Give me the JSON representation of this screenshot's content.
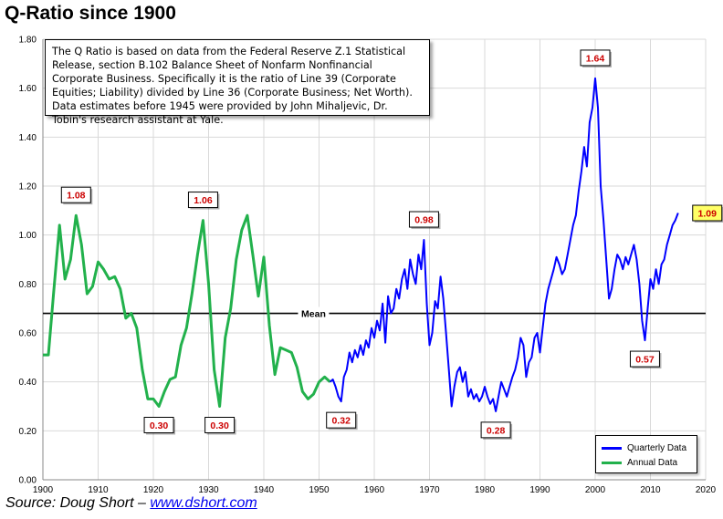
{
  "title": "Q-Ratio since 1900",
  "note": "The Q Ratio is based on data from the Federal Reserve Z.1 Statistical Release, section B.102 Balance Sheet of Nonfarm Nonfinancial Corporate Business. Specifically it is the ratio of Line 39 (Corporate Equities; Liability) divided by Line 36 (Corporate Business; Net Worth). Data estimates before 1945 were provided by John Mihaljevic, Dr. Tobin's research assistant at Yale.",
  "source": {
    "prefix": "Source: Doug Short – ",
    "link_text": "www.dshort.com"
  },
  "colors": {
    "annual": "#22b14c",
    "quarterly": "#0000ff",
    "mean_line": "#000000",
    "grid": "#d9d9d9",
    "label_text": "#cc0000",
    "highlight_bg": "#ffff66"
  },
  "chart_data": {
    "type": "line",
    "title": "Q-Ratio since 1900",
    "xlabel": "",
    "ylabel": "",
    "xlim": [
      1900,
      2020
    ],
    "ylim": [
      0,
      1.8
    ],
    "x_ticks": [
      1900,
      1910,
      1920,
      1930,
      1940,
      1950,
      1960,
      1970,
      1980,
      1990,
      2000,
      2010,
      2020
    ],
    "y_ticks": [
      "0.00",
      "0.20",
      "0.40",
      "0.60",
      "0.80",
      "1.00",
      "1.20",
      "1.40",
      "1.60",
      "1.80"
    ],
    "grid": true,
    "legend_position": "bottom-right",
    "mean": {
      "label": "Mean",
      "value": 0.68
    },
    "series": [
      {
        "name": "Quarterly Data",
        "points": [
          [
            1952,
            0.4
          ],
          [
            1952.5,
            0.41
          ],
          [
            1953,
            0.38
          ],
          [
            1953.5,
            0.34
          ],
          [
            1954,
            0.32
          ],
          [
            1954.5,
            0.42
          ],
          [
            1955,
            0.45
          ],
          [
            1955.5,
            0.52
          ],
          [
            1956,
            0.48
          ],
          [
            1956.5,
            0.53
          ],
          [
            1957,
            0.5
          ],
          [
            1957.5,
            0.55
          ],
          [
            1958,
            0.51
          ],
          [
            1958.5,
            0.57
          ],
          [
            1959,
            0.54
          ],
          [
            1959.5,
            0.62
          ],
          [
            1960,
            0.58
          ],
          [
            1960.5,
            0.65
          ],
          [
            1961,
            0.61
          ],
          [
            1961.5,
            0.72
          ],
          [
            1962,
            0.56
          ],
          [
            1962.5,
            0.75
          ],
          [
            1963,
            0.68
          ],
          [
            1963.5,
            0.7
          ],
          [
            1964,
            0.78
          ],
          [
            1964.5,
            0.74
          ],
          [
            1965,
            0.82
          ],
          [
            1965.5,
            0.86
          ],
          [
            1966,
            0.78
          ],
          [
            1966.5,
            0.9
          ],
          [
            1967,
            0.84
          ],
          [
            1967.5,
            0.8
          ],
          [
            1968,
            0.92
          ],
          [
            1968.5,
            0.86
          ],
          [
            1969,
            0.98
          ],
          [
            1969.5,
            0.72
          ],
          [
            1970,
            0.55
          ],
          [
            1970.5,
            0.6
          ],
          [
            1971,
            0.73
          ],
          [
            1971.5,
            0.7
          ],
          [
            1972,
            0.83
          ],
          [
            1972.5,
            0.74
          ],
          [
            1973,
            0.6
          ],
          [
            1973.5,
            0.45
          ],
          [
            1974,
            0.3
          ],
          [
            1974.5,
            0.38
          ],
          [
            1975,
            0.44
          ],
          [
            1975.5,
            0.46
          ],
          [
            1976,
            0.4
          ],
          [
            1976.5,
            0.44
          ],
          [
            1977,
            0.34
          ],
          [
            1977.5,
            0.37
          ],
          [
            1978,
            0.33
          ],
          [
            1978.5,
            0.35
          ],
          [
            1979,
            0.32
          ],
          [
            1979.5,
            0.34
          ],
          [
            1980,
            0.38
          ],
          [
            1980.5,
            0.34
          ],
          [
            1981,
            0.31
          ],
          [
            1981.5,
            0.33
          ],
          [
            1982,
            0.28
          ],
          [
            1982.5,
            0.34
          ],
          [
            1983,
            0.4
          ],
          [
            1983.5,
            0.37
          ],
          [
            1984,
            0.34
          ],
          [
            1984.5,
            0.38
          ],
          [
            1985,
            0.42
          ],
          [
            1985.5,
            0.45
          ],
          [
            1986,
            0.5
          ],
          [
            1986.5,
            0.58
          ],
          [
            1987,
            0.55
          ],
          [
            1987.5,
            0.42
          ],
          [
            1988,
            0.48
          ],
          [
            1988.5,
            0.5
          ],
          [
            1989,
            0.58
          ],
          [
            1989.5,
            0.6
          ],
          [
            1990,
            0.52
          ],
          [
            1990.5,
            0.62
          ],
          [
            1991,
            0.72
          ],
          [
            1991.5,
            0.78
          ],
          [
            1992,
            0.82
          ],
          [
            1992.5,
            0.86
          ],
          [
            1993,
            0.91
          ],
          [
            1993.5,
            0.88
          ],
          [
            1994,
            0.84
          ],
          [
            1994.5,
            0.86
          ],
          [
            1995,
            0.92
          ],
          [
            1995.5,
            0.98
          ],
          [
            1996,
            1.04
          ],
          [
            1996.5,
            1.08
          ],
          [
            1997,
            1.18
          ],
          [
            1997.5,
            1.26
          ],
          [
            1998,
            1.36
          ],
          [
            1998.5,
            1.28
          ],
          [
            1999,
            1.46
          ],
          [
            1999.5,
            1.52
          ],
          [
            2000,
            1.64
          ],
          [
            2000.5,
            1.52
          ],
          [
            2001,
            1.2
          ],
          [
            2001.5,
            1.06
          ],
          [
            2002,
            0.9
          ],
          [
            2002.5,
            0.74
          ],
          [
            2003,
            0.78
          ],
          [
            2003.5,
            0.86
          ],
          [
            2004,
            0.92
          ],
          [
            2004.5,
            0.9
          ],
          [
            2005,
            0.86
          ],
          [
            2005.5,
            0.91
          ],
          [
            2006,
            0.88
          ],
          [
            2006.5,
            0.92
          ],
          [
            2007,
            0.96
          ],
          [
            2007.5,
            0.9
          ],
          [
            2008,
            0.8
          ],
          [
            2008.5,
            0.65
          ],
          [
            2009,
            0.57
          ],
          [
            2009.5,
            0.7
          ],
          [
            2010,
            0.82
          ],
          [
            2010.5,
            0.78
          ],
          [
            2011,
            0.86
          ],
          [
            2011.5,
            0.8
          ],
          [
            2012,
            0.88
          ],
          [
            2012.5,
            0.9
          ],
          [
            2013,
            0.96
          ],
          [
            2013.5,
            1.0
          ],
          [
            2014,
            1.04
          ],
          [
            2014.5,
            1.06
          ],
          [
            2015,
            1.09
          ]
        ]
      },
      {
        "name": "Annual Data",
        "points": [
          [
            1900,
            0.51
          ],
          [
            1901,
            0.51
          ],
          [
            1902,
            0.78
          ],
          [
            1903,
            1.04
          ],
          [
            1904,
            0.82
          ],
          [
            1905,
            0.9
          ],
          [
            1906,
            1.08
          ],
          [
            1907,
            0.96
          ],
          [
            1908,
            0.76
          ],
          [
            1909,
            0.79
          ],
          [
            1910,
            0.89
          ],
          [
            1911,
            0.86
          ],
          [
            1912,
            0.82
          ],
          [
            1913,
            0.83
          ],
          [
            1914,
            0.78
          ],
          [
            1915,
            0.66
          ],
          [
            1916,
            0.68
          ],
          [
            1917,
            0.62
          ],
          [
            1918,
            0.45
          ],
          [
            1919,
            0.33
          ],
          [
            1920,
            0.33
          ],
          [
            1921,
            0.3
          ],
          [
            1922,
            0.36
          ],
          [
            1923,
            0.41
          ],
          [
            1924,
            0.42
          ],
          [
            1925,
            0.55
          ],
          [
            1926,
            0.62
          ],
          [
            1927,
            0.76
          ],
          [
            1928,
            0.92
          ],
          [
            1929,
            1.06
          ],
          [
            1930,
            0.8
          ],
          [
            1931,
            0.45
          ],
          [
            1932,
            0.3
          ],
          [
            1933,
            0.58
          ],
          [
            1934,
            0.7
          ],
          [
            1935,
            0.9
          ],
          [
            1936,
            1.02
          ],
          [
            1937,
            1.08
          ],
          [
            1938,
            0.92
          ],
          [
            1939,
            0.75
          ],
          [
            1940,
            0.91
          ],
          [
            1941,
            0.63
          ],
          [
            1942,
            0.43
          ],
          [
            1943,
            0.54
          ],
          [
            1944,
            0.53
          ],
          [
            1945,
            0.52
          ],
          [
            1946,
            0.46
          ],
          [
            1947,
            0.36
          ],
          [
            1948,
            0.33
          ],
          [
            1949,
            0.35
          ],
          [
            1950,
            0.4
          ],
          [
            1951,
            0.42
          ],
          [
            1952,
            0.4
          ]
        ]
      }
    ],
    "annotations": [
      {
        "label": "1.08",
        "x": 1906,
        "y": 1.08,
        "side": "above"
      },
      {
        "label": "1.06",
        "x": 1929,
        "y": 1.06,
        "side": "above"
      },
      {
        "label": "0.98",
        "x": 1969,
        "y": 0.98,
        "side": "above"
      },
      {
        "label": "1.64",
        "x": 2000,
        "y": 1.64,
        "side": "above"
      },
      {
        "label": "0.30",
        "x": 1921,
        "y": 0.3,
        "side": "below"
      },
      {
        "label": "0.30",
        "x": 1932,
        "y": 0.3,
        "side": "below"
      },
      {
        "label": "0.32",
        "x": 1954,
        "y": 0.32,
        "side": "below"
      },
      {
        "label": "0.28",
        "x": 1982,
        "y": 0.28,
        "side": "below"
      },
      {
        "label": "0.57",
        "x": 2009,
        "y": 0.57,
        "side": "below"
      },
      {
        "label": "1.09",
        "x": 2015,
        "y": 1.09,
        "side": "right",
        "highlight": true
      }
    ]
  }
}
